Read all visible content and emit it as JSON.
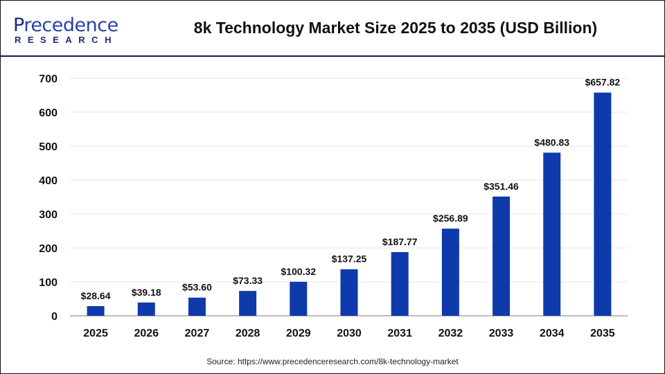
{
  "logo": {
    "line1_first": "P",
    "line1_rest": "recedence",
    "line2": "RESEARCH"
  },
  "header": {
    "title": "8k Technology Market Size 2025 to 2035 (USD Billion)"
  },
  "source": "Source: https://www.precedenceresearch.com/8k-technology-market",
  "chart_data": {
    "type": "bar",
    "title": "8k Technology Market Size 2025 to 2035 (USD Billion)",
    "categories": [
      "2025",
      "2026",
      "2027",
      "2028",
      "2029",
      "2030",
      "2031",
      "2032",
      "2033",
      "2034",
      "2035"
    ],
    "values": [
      28.64,
      39.18,
      53.6,
      73.33,
      100.32,
      137.25,
      187.77,
      256.89,
      351.46,
      480.83,
      657.82
    ],
    "data_labels": [
      "$28.64",
      "$39.18",
      "$53.60",
      "$73.33",
      "$100.32",
      "$137.25",
      "$187.77",
      "$256.89",
      "$351.46",
      "$480.83",
      "$657.82"
    ],
    "yticks": [
      0,
      100,
      200,
      300,
      400,
      500,
      600,
      700
    ],
    "ylim": [
      0,
      700
    ],
    "xlabel": "",
    "ylabel": "",
    "grid": true,
    "bar_color": "#0f3aab"
  }
}
